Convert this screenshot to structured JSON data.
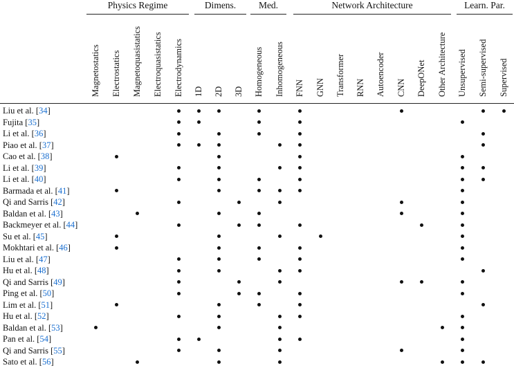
{
  "groups": [
    {
      "label": "Physics Regime"
    },
    {
      "label": "Dimens."
    },
    {
      "label": "Med."
    },
    {
      "label": "Network Architecture"
    },
    {
      "label": "Learn. Par."
    }
  ],
  "columns": [
    "Magnetostatics",
    "Electrostatics",
    "Magnetoquasistatics",
    "Electroquasistatics",
    "Electrodynamics",
    "1D",
    "2D",
    "3D",
    "Homogeneous",
    "Inhomogeneous",
    "FNN",
    "GNN",
    "Transformer",
    "RNN",
    "Autoencoder",
    "CNN",
    "DeepONet",
    "Other Architecture",
    "Unsupervised",
    "Semi-supervised",
    "Supervised"
  ],
  "rows": [
    {
      "name": "Liu et al. [",
      "cite": "34",
      "close": "]",
      "marks": [
        4,
        5,
        6,
        8,
        10,
        15,
        19,
        20
      ]
    },
    {
      "name": "Fujita [",
      "cite": "35",
      "close": "]",
      "marks": [
        4,
        5,
        8,
        10,
        18
      ]
    },
    {
      "name": "Li et al. [",
      "cite": "36",
      "close": "]",
      "marks": [
        4,
        6,
        8,
        10,
        19
      ]
    },
    {
      "name": "Piao et al. [",
      "cite": "37",
      "close": "]",
      "marks": [
        4,
        5,
        6,
        9,
        10,
        19
      ]
    },
    {
      "name": "Cao et al. [",
      "cite": "38",
      "close": "]",
      "marks": [
        1,
        6,
        10,
        18
      ]
    },
    {
      "name": "Li et al. [",
      "cite": "39",
      "close": "]",
      "marks": [
        4,
        6,
        9,
        10,
        18,
        19
      ]
    },
    {
      "name": "Li et al. [",
      "cite": "40",
      "close": "]",
      "marks": [
        4,
        6,
        8,
        10,
        18,
        19
      ]
    },
    {
      "name": "Barmada et al. [",
      "cite": "41",
      "close": "]",
      "marks": [
        1,
        6,
        8,
        9,
        10,
        18
      ]
    },
    {
      "name": "Qi and Sarris [",
      "cite": "42",
      "close": "]",
      "marks": [
        4,
        7,
        9,
        15,
        18
      ]
    },
    {
      "name": "Baldan et al. [",
      "cite": "43",
      "close": "]",
      "marks": [
        2,
        6,
        8,
        15,
        18
      ]
    },
    {
      "name": "Backmeyer et al. [",
      "cite": "44",
      "close": "]",
      "marks": [
        4,
        7,
        8,
        10,
        16,
        18
      ]
    },
    {
      "name": "Su et al. [",
      "cite": "45",
      "close": "]",
      "marks": [
        1,
        6,
        9,
        11,
        18
      ]
    },
    {
      "name": "Mokhtari et al. [",
      "cite": "46",
      "close": "]",
      "marks": [
        1,
        6,
        8,
        10,
        18
      ]
    },
    {
      "name": "Liu et al. [",
      "cite": "47",
      "close": "]",
      "marks": [
        4,
        6,
        8,
        10,
        18
      ]
    },
    {
      "name": "Hu et al. [",
      "cite": "48",
      "close": "]",
      "marks": [
        4,
        6,
        9,
        10,
        19
      ]
    },
    {
      "name": "Qi and Sarris [",
      "cite": "49",
      "close": "]",
      "marks": [
        4,
        7,
        9,
        15,
        16,
        18
      ]
    },
    {
      "name": "Ping et al. [",
      "cite": "50",
      "close": "]",
      "marks": [
        4,
        7,
        8,
        10,
        18
      ]
    },
    {
      "name": "Lim et al. [",
      "cite": "51",
      "close": "]",
      "marks": [
        1,
        6,
        8,
        10,
        19
      ]
    },
    {
      "name": "Hu et al. [",
      "cite": "52",
      "close": "]",
      "marks": [
        4,
        6,
        9,
        10,
        18
      ]
    },
    {
      "name": "Baldan et al. [",
      "cite": "53",
      "close": "]",
      "marks": [
        0,
        6,
        9,
        17,
        18
      ]
    },
    {
      "name": "Pan et al. [",
      "cite": "54",
      "close": "]",
      "marks": [
        4,
        5,
        9,
        10,
        18
      ]
    },
    {
      "name": "Qi and Sarris [",
      "cite": "55",
      "close": "]",
      "marks": [
        4,
        6,
        9,
        15,
        18
      ]
    },
    {
      "name": "Sato et al. [",
      "cite": "56",
      "close": "]",
      "marks": [
        2,
        6,
        9,
        17,
        18,
        19
      ]
    }
  ],
  "colors": {
    "text": "#111111",
    "citation": "#1a6fd0",
    "dot": "#111111"
  }
}
